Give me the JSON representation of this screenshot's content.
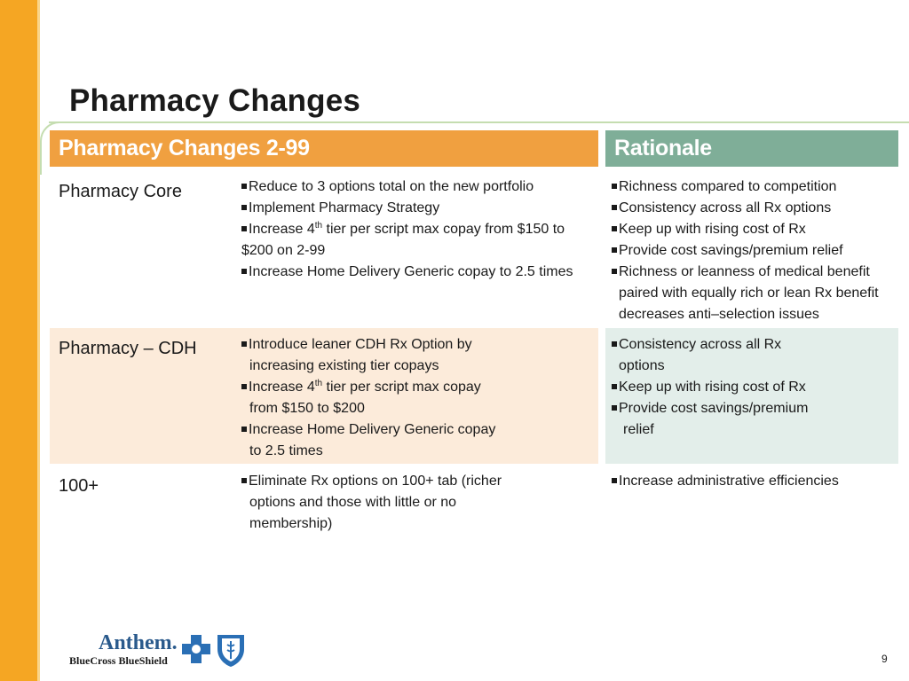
{
  "slide": {
    "title": "Pharmacy Changes",
    "page_number": "9"
  },
  "table": {
    "header_left": "Pharmacy Changes 2-99",
    "header_right": "Rationale",
    "rows": [
      {
        "label": "Pharmacy Core",
        "changes": [
          "Reduce to 3 options total on the new portfolio",
          "Implement Pharmacy Strategy",
          "Increase 4th tier per script max copay from $150 to $200 on 2-99",
          "Increase Home Delivery Generic copay to 2.5 times"
        ],
        "rationale": [
          "Richness compared to competition",
          "Consistency across all Rx options",
          "Keep up with rising cost of Rx",
          "Provide cost savings/premium relief",
          "Richness or leanness of medical benefit paired with equally rich or lean Rx benefit decreases anti–selection issues"
        ]
      },
      {
        "label": "Pharmacy – CDH",
        "changes": [
          "Introduce leaner CDH Rx Option by increasing existing tier copays",
          "Increase 4th tier per script max copay from $150 to $200",
          "Increase Home Delivery Generic copay to 2.5 times"
        ],
        "rationale": [
          "Consistency across all Rx options",
          "Keep up with rising cost of Rx",
          "Provide cost savings/premium relief"
        ]
      },
      {
        "label": "100+",
        "changes": [
          "Eliminate Rx options on 100+ tab (richer options and those with little or no membership)"
        ],
        "rationale": [
          "Increase administrative efficiencies"
        ]
      }
    ]
  },
  "logo": {
    "wordmark": "Anthem.",
    "subtitle": "BlueCross BlueShield"
  },
  "colors": {
    "accent_orange": "#F5A623",
    "header_orange": "#F0A040",
    "header_green": "#7FAE98",
    "row_peach": "#FCEBDA",
    "row_mint": "#E3EEEA",
    "brand_blue": "#2A5A8C"
  }
}
